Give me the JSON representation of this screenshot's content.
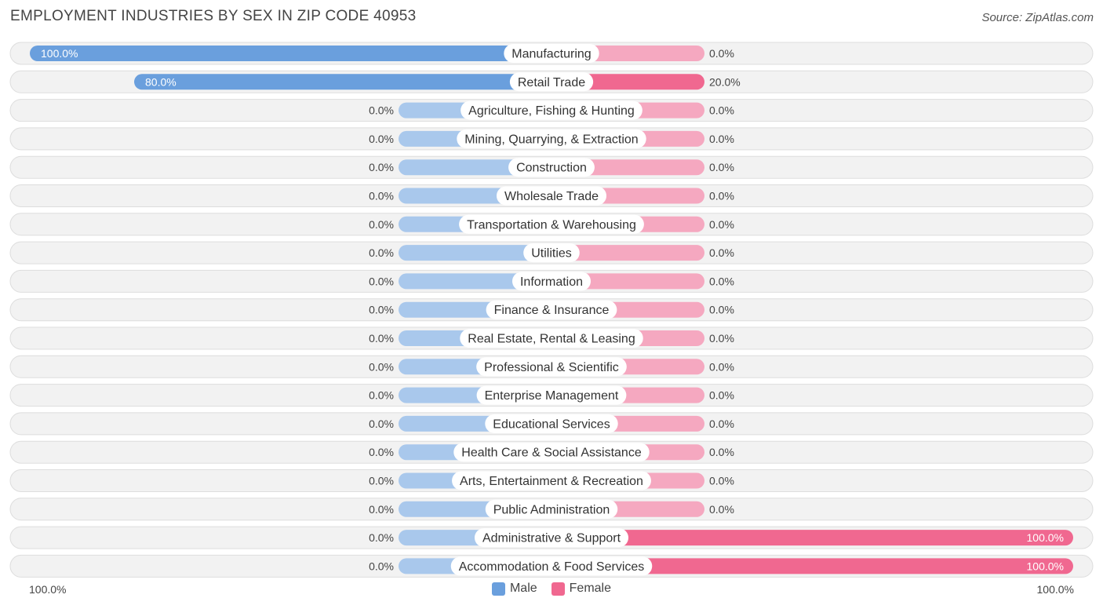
{
  "title": "EMPLOYMENT INDUSTRIES BY SEX IN ZIP CODE 40953",
  "source": "Source: ZipAtlas.com",
  "colors": {
    "male_strong": "#6a9fdd",
    "male_light": "#a9c8ec",
    "female_strong": "#f06890",
    "female_light": "#f5a8c0",
    "row_bg": "#f2f2f2",
    "row_border": "#dddddd"
  },
  "legend": {
    "male": "Male",
    "female": "Female"
  },
  "axis": {
    "left": "100.0%",
    "right": "100.0%"
  },
  "chart_data": {
    "type": "bar",
    "orientation": "horizontal-diverging",
    "title": "EMPLOYMENT INDUSTRIES BY SEX IN ZIP CODE 40953",
    "xlim": [
      -100,
      100
    ],
    "categories": [
      "Manufacturing",
      "Retail Trade",
      "Agriculture, Fishing & Hunting",
      "Mining, Quarrying, & Extraction",
      "Construction",
      "Wholesale Trade",
      "Transportation & Warehousing",
      "Utilities",
      "Information",
      "Finance & Insurance",
      "Real Estate, Rental & Leasing",
      "Professional & Scientific",
      "Enterprise Management",
      "Educational Services",
      "Health Care & Social Assistance",
      "Arts, Entertainment & Recreation",
      "Public Administration",
      "Administrative & Support",
      "Accommodation & Food Services"
    ],
    "series": [
      {
        "name": "Male",
        "values": [
          100,
          80,
          0,
          0,
          0,
          0,
          0,
          0,
          0,
          0,
          0,
          0,
          0,
          0,
          0,
          0,
          0,
          0,
          0
        ]
      },
      {
        "name": "Female",
        "values": [
          0,
          20,
          0,
          0,
          0,
          0,
          0,
          0,
          0,
          0,
          0,
          0,
          0,
          0,
          0,
          0,
          0,
          100,
          100
        ]
      }
    ],
    "male_labels": [
      "100.0%",
      "80.0%",
      "0.0%",
      "0.0%",
      "0.0%",
      "0.0%",
      "0.0%",
      "0.0%",
      "0.0%",
      "0.0%",
      "0.0%",
      "0.0%",
      "0.0%",
      "0.0%",
      "0.0%",
      "0.0%",
      "0.0%",
      "0.0%",
      "0.0%"
    ],
    "female_labels": [
      "0.0%",
      "20.0%",
      "0.0%",
      "0.0%",
      "0.0%",
      "0.0%",
      "0.0%",
      "0.0%",
      "0.0%",
      "0.0%",
      "0.0%",
      "0.0%",
      "0.0%",
      "0.0%",
      "0.0%",
      "0.0%",
      "0.0%",
      "100.0%",
      "100.0%"
    ]
  }
}
